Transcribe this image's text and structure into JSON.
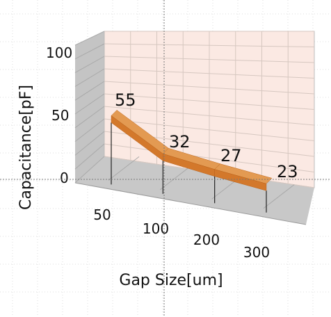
{
  "chart_data": {
    "type": "line",
    "categories": [
      "50",
      "100",
      "200",
      "300"
    ],
    "values": [
      55,
      32,
      27,
      23
    ],
    "data_labels": [
      "55",
      "32",
      "27",
      "23"
    ],
    "xlabel": "Gap Size[um]",
    "ylabel": "Capacitance[pF]",
    "ylim": [
      0,
      100
    ],
    "yticks": [
      "0",
      "50",
      "100"
    ],
    "grid": true,
    "style": "3d-line",
    "colors": {
      "line_front": "#d3782b",
      "line_top": "#e39a52",
      "back_wall": "#fbe9e3",
      "side_wall": "#c4c4c4",
      "floor": "#c8c8c8",
      "wall_grid": "#d6c7c0"
    }
  }
}
